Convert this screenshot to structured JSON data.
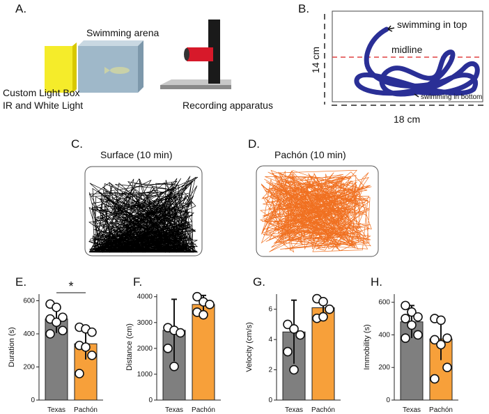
{
  "panels": {
    "a": {
      "label": "A.",
      "arena": "Swimming arena",
      "lightbox": [
        "Custom Light Box",
        "IR and White Light"
      ],
      "recording": "Recording apparatus"
    },
    "b": {
      "label": "B.",
      "top": "swimming in top",
      "midline": "midline",
      "bottom": "swimming in bottom",
      "height": "14 cm",
      "width": "18 cm"
    },
    "c": {
      "label": "C.",
      "title": "Surface (10 min)"
    },
    "d": {
      "label": "D.",
      "title": "Pachón (10 min)"
    }
  },
  "chart_data": [
    {
      "type": "bar",
      "label": "E.",
      "ylabel": "Duration (s)",
      "categories": [
        "Texas",
        "Pachón"
      ],
      "values": [
        490,
        340
      ],
      "errors": [
        85,
        95
      ],
      "points": [
        [
          580,
          560,
          500,
          490,
          470,
          420,
          400
        ],
        [
          440,
          430,
          410,
          330,
          320,
          270,
          160
        ]
      ],
      "colors": [
        "#7f7f7f",
        "#f7a03a"
      ],
      "ylim": [
        0,
        640
      ],
      "yticks": [
        0,
        200,
        400,
        600
      ],
      "annotation": "*"
    },
    {
      "type": "bar",
      "label": "F.",
      "ylabel": "Distance (cm)",
      "categories": [
        "Texas",
        "Pachón"
      ],
      "values": [
        2700,
        3700
      ],
      "errors": [
        1200,
        350
      ],
      "points": [
        [
          2800,
          2700,
          2600,
          2000,
          1300
        ],
        [
          4000,
          3800,
          3700,
          3400,
          3300
        ]
      ],
      "colors": [
        "#7f7f7f",
        "#f7a03a"
      ],
      "ylim": [
        0,
        4100
      ],
      "yticks": [
        0,
        1000,
        2000,
        3000,
        4000
      ]
    },
    {
      "type": "bar",
      "label": "G.",
      "ylabel": "Velocity (cm/s)",
      "categories": [
        "Texas",
        "Pachón"
      ],
      "values": [
        4.5,
        6.1
      ],
      "errors": [
        2.1,
        0.6
      ],
      "points": [
        [
          5.0,
          4.7,
          4.3,
          3.2,
          2.0
        ],
        [
          6.7,
          6.5,
          6.0,
          5.4,
          5.5
        ]
      ],
      "colors": [
        "#7f7f7f",
        "#f7a03a"
      ],
      "ylim": [
        0,
        7
      ],
      "yticks": [
        0,
        2,
        4,
        6
      ]
    },
    {
      "type": "bar",
      "label": "H.",
      "ylabel": "Immobility (s)",
      "categories": [
        "Texas",
        "Pachón"
      ],
      "values": [
        480,
        375
      ],
      "errors": [
        100,
        130
      ],
      "points": [
        [
          580,
          540,
          510,
          500,
          460,
          400,
          380
        ],
        [
          500,
          490,
          380,
          370,
          340,
          200,
          130
        ]
      ],
      "colors": [
        "#7f7f7f",
        "#f7a03a"
      ],
      "ylim": [
        0,
        650
      ],
      "yticks": [
        0,
        200,
        400,
        600
      ]
    }
  ]
}
